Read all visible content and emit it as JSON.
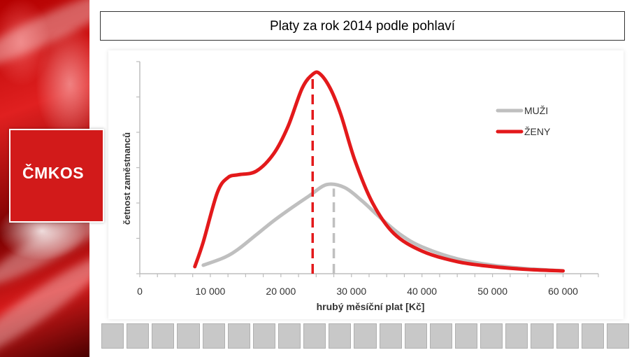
{
  "brand": {
    "logo_text": "ČMKOS",
    "accent": "#d21a1a"
  },
  "slide": {
    "title": "Platy za rok 2014 podle pohlaví"
  },
  "chart_data": {
    "type": "line",
    "title": "Platy za rok 2014 podle pohlaví",
    "xlabel": "hrubý měsíční plat [Kč]",
    "ylabel": "četnost zaměstnanců",
    "xlim": [
      0,
      65000
    ],
    "ylim": [
      0,
      300
    ],
    "x_ticks": [
      0,
      10000,
      20000,
      30000,
      40000,
      50000,
      60000
    ],
    "x_tick_labels": [
      "0",
      "10 000",
      "20 000",
      "30 000",
      "40 000",
      "50 000",
      "60 000"
    ],
    "legend_position": "top-right",
    "series": [
      {
        "name": "MUŽI",
        "color": "#bfbfbf",
        "x": [
          9000,
          12000,
          14000,
          16500,
          19000,
          21500,
          24000,
          26500,
          29000,
          31500,
          34000,
          37000,
          40000,
          45000,
          50000,
          55000,
          60000
        ],
        "y": [
          12,
          23,
          35,
          55,
          75,
          93,
          110,
          126,
          122,
          103,
          80,
          55,
          38,
          21,
          12,
          7,
          4
        ],
        "median": 27500
      },
      {
        "name": "ŽENY",
        "color": "#e3191b",
        "x": [
          7800,
          9000,
          11000,
          12500,
          14000,
          16500,
          19000,
          21000,
          23000,
          24500,
          25500,
          27000,
          28500,
          30500,
          33000,
          36000,
          40000,
          45000,
          50000,
          55000,
          60000
        ],
        "y": [
          10,
          45,
          115,
          136,
          140,
          145,
          170,
          208,
          262,
          282,
          283,
          262,
          225,
          160,
          100,
          57,
          32,
          17,
          10,
          6,
          4
        ],
        "median": 24500
      }
    ]
  }
}
